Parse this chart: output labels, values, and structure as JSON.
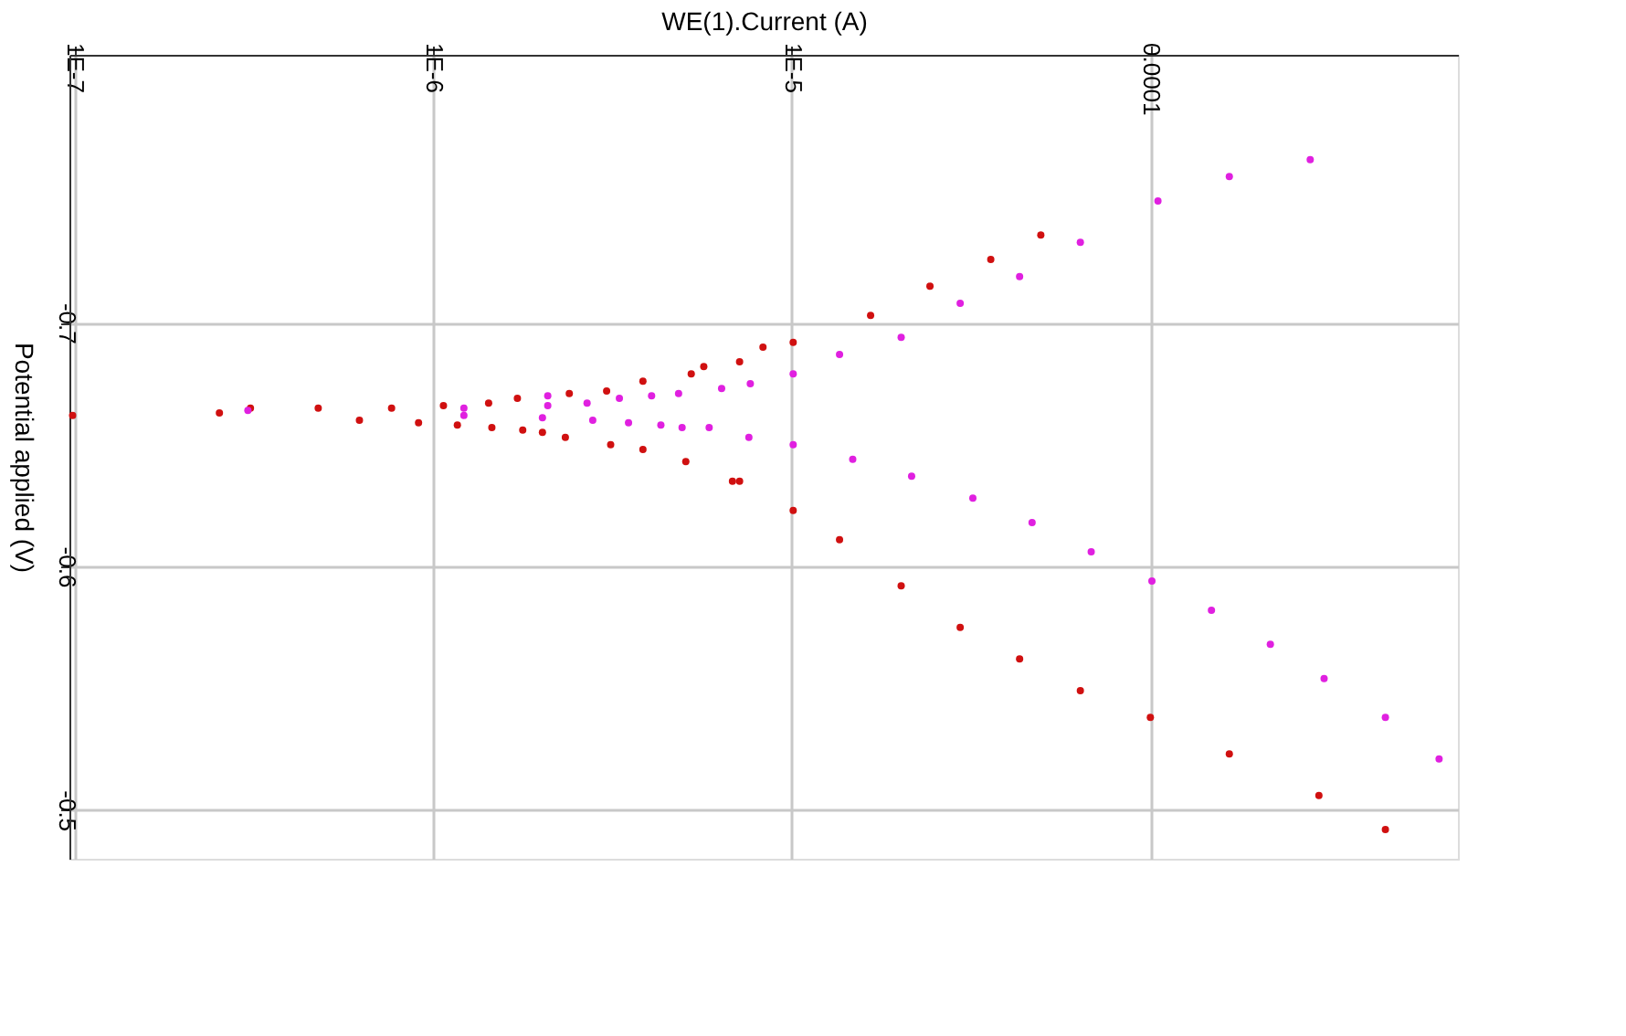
{
  "chart_data": {
    "type": "scatter",
    "xlabel": "WE(1).Current (A)",
    "ylabel": "Potential applied (V)",
    "log": "x",
    "grid": true,
    "marker": "circle",
    "xlim": [
      9.7e-08,
      0.00072
    ],
    "ylim": [
      -0.48,
      -0.81
    ],
    "xticks": [
      {
        "value": 1e-07,
        "label": "1E-7"
      },
      {
        "value": 1e-06,
        "label": "1E-6"
      },
      {
        "value": 1e-05,
        "label": "1E-5"
      },
      0.0001
    ],
    "yticks": [
      -0.7,
      -0.6,
      -0.5
    ],
    "series": [
      {
        "color": "#d01010",
        "x": [
          4.95e-05,
          3.59e-05,
          2.43e-05,
          1.66e-05,
          1.01e-05,
          8.32e-06,
          7.16e-06,
          5.69e-06,
          5.25e-06,
          3.85e-06,
          3.05e-06,
          2.4e-06,
          1.72e-06,
          1.43e-06,
          1.07e-06,
          7.67e-07,
          4.79e-07,
          3.1e-07,
          2.54e-07,
          9.9e-08,
          6.24e-07,
          9.12e-07,
          1.17e-06,
          1.46e-06,
          1.78e-06,
          2.02e-06,
          2.34e-06,
          3.13e-06,
          3.85e-06,
          5.07e-06,
          6.84e-06,
          7.16e-06,
          1.01e-05,
          1.36e-05,
          2.02e-05,
          2.95e-05,
          4.32e-05,
          6.38e-05,
          0.0001,
          0.000166,
          0.000295,
          0.000452
        ],
        "values": [
          -0.736,
          -0.726,
          -0.715,
          -0.703,
          -0.692,
          -0.69,
          -0.684,
          -0.682,
          -0.679,
          -0.676,
          -0.672,
          -0.671,
          -0.669,
          -0.667,
          -0.666,
          -0.665,
          -0.665,
          -0.665,
          -0.663,
          -0.662,
          -0.66,
          -0.659,
          -0.658,
          -0.657,
          -0.656,
          -0.655,
          -0.653,
          -0.65,
          -0.648,
          -0.643,
          -0.635,
          -0.635,
          -0.623,
          -0.611,
          -0.592,
          -0.575,
          -0.562,
          -0.549,
          -0.538,
          -0.523,
          -0.506,
          -0.492
        ]
      },
      {
        "color": "#e020e0",
        "x": [
          0.000279,
          0.000166,
          0.000105,
          6.38e-05,
          4.32e-05,
          2.95e-05,
          2.02e-05,
          1.36e-05,
          1.01e-05,
          7.67e-06,
          6.38e-06,
          4.84e-06,
          4.07e-06,
          3.31e-06,
          2.69e-06,
          2.09e-06,
          2.09e-06,
          1.22e-06,
          3.05e-07,
          1.22e-06,
          2.02e-06,
          2.79e-06,
          3.51e-06,
          4.32e-06,
          4.95e-06,
          5.89e-06,
          7.6e-06,
          1.01e-05,
          1.48e-05,
          2.16e-05,
          3.2e-05,
          4.68e-05,
          6.84e-05,
          0.000101,
          0.000148,
          0.000216,
          0.000305,
          0.000452,
          0.000638
        ],
        "values": [
          -0.767,
          -0.76,
          -0.75,
          -0.733,
          -0.719,
          -0.708,
          -0.694,
          -0.687,
          -0.679,
          -0.675,
          -0.673,
          -0.671,
          -0.67,
          -0.669,
          -0.667,
          -0.67,
          -0.666,
          -0.665,
          -0.664,
          -0.662,
          -0.661,
          -0.66,
          -0.659,
          -0.658,
          -0.657,
          -0.657,
          -0.653,
          -0.65,
          -0.644,
          -0.637,
          -0.628,
          -0.618,
          -0.606,
          -0.594,
          -0.582,
          -0.568,
          -0.554,
          -0.538,
          -0.521
        ]
      }
    ]
  }
}
